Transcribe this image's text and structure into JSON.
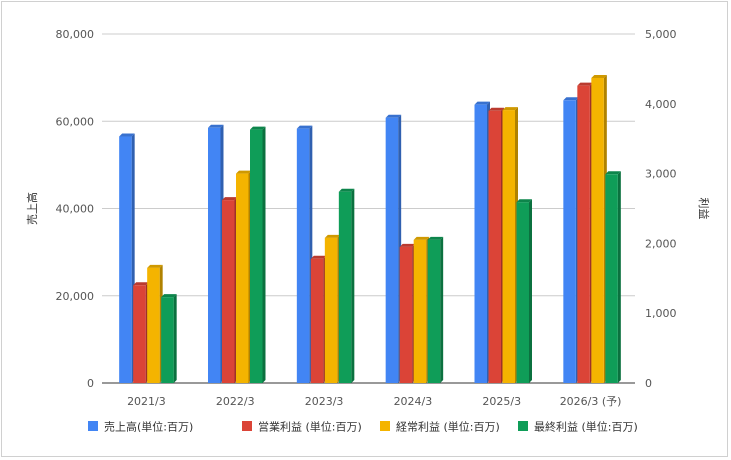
{
  "chart_data": {
    "type": "bar",
    "categories": [
      "2021/3",
      "2022/3",
      "2023/3",
      "2024/3",
      "2025/3",
      "2026/3 (予)"
    ],
    "series": [
      {
        "name": "売上高(単位:百万)",
        "axis": "left",
        "color": "#4285F4",
        "values": [
          56500,
          58500,
          58300,
          60800,
          63800,
          64800
        ]
      },
      {
        "name": "営業利益 (単位:百万)",
        "axis": "right",
        "color": "#DB4437",
        "values": [
          1400,
          2620,
          1780,
          1950,
          3900,
          4260
        ]
      },
      {
        "name": "経常利益 (単位:百万)",
        "axis": "right",
        "color": "#F4B400",
        "values": [
          1650,
          3000,
          2080,
          2050,
          3910,
          4370
        ]
      },
      {
        "name": "最終利益 (単位:百万)",
        "axis": "right",
        "color": "#0F9D58",
        "values": [
          1230,
          3630,
          2740,
          2050,
          2590,
          2990
        ]
      }
    ],
    "y_left": {
      "label": "売上高",
      "lim": [
        0,
        80000
      ],
      "ticks": [
        "0",
        "20,000",
        "40,000",
        "60,000",
        "80,000"
      ]
    },
    "y_right": {
      "label": "利益",
      "lim": [
        0,
        5000
      ],
      "ticks": [
        "0",
        "1,000",
        "2,000",
        "3,000",
        "4,000",
        "5,000"
      ]
    },
    "grid": true,
    "legend_position": "bottom"
  }
}
